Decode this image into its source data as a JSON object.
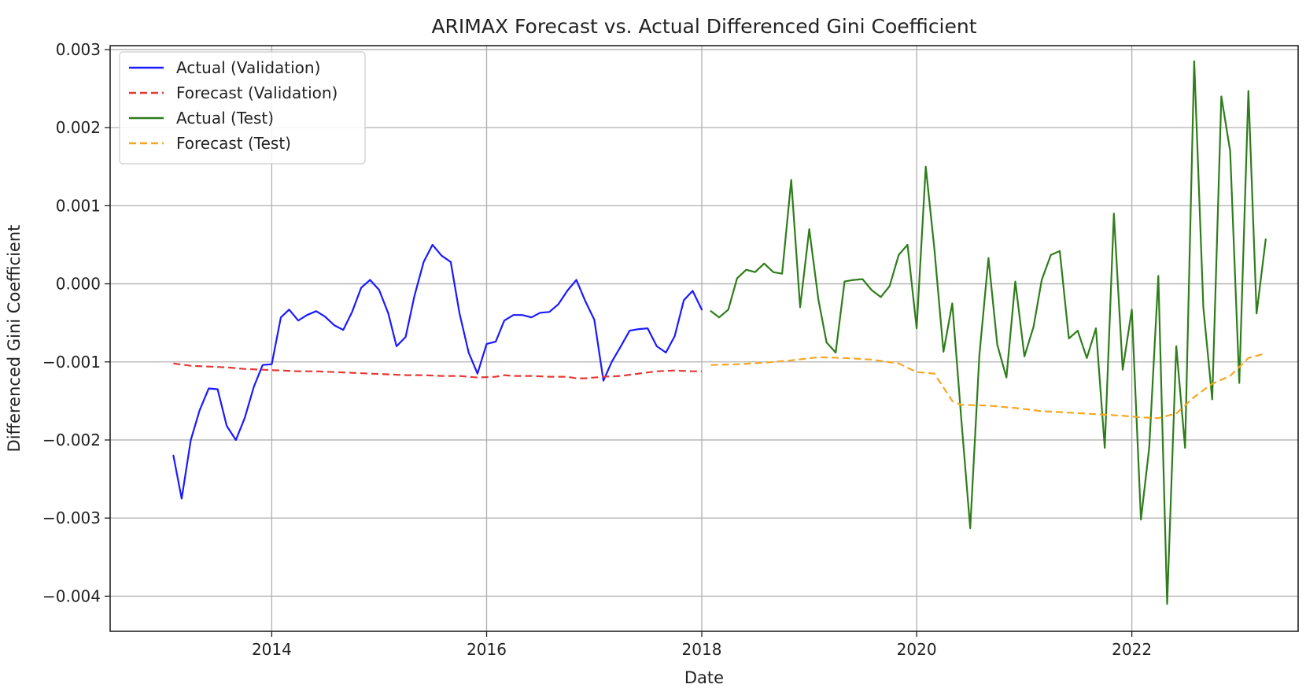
{
  "chart_data": {
    "type": "line",
    "title": "ARIMAX Forecast vs. Actual Differenced Gini Coefficient",
    "xlabel": "Date",
    "ylabel": "Differenced Gini Coefficient",
    "x_ticks": [
      {
        "date": "2014-01-01",
        "label": "2014"
      },
      {
        "date": "2016-01-01",
        "label": "2016"
      },
      {
        "date": "2018-01-01",
        "label": "2018"
      },
      {
        "date": "2020-01-01",
        "label": "2020"
      },
      {
        "date": "2022-01-01",
        "label": "2022"
      }
    ],
    "y_ticks": [
      {
        "value": 0.003,
        "label": "0.003"
      },
      {
        "value": 0.002,
        "label": "0.002"
      },
      {
        "value": 0.001,
        "label": "0.001"
      },
      {
        "value": 0.0,
        "label": "0.000"
      },
      {
        "value": -0.001,
        "label": "−0.001"
      },
      {
        "value": -0.002,
        "label": "−0.002"
      },
      {
        "value": -0.003,
        "label": "−0.003"
      },
      {
        "value": -0.004,
        "label": "−0.004"
      }
    ],
    "xlim": [
      "2012-07-01",
      "2023-07-20"
    ],
    "ylim": [
      -0.00445,
      0.00305
    ],
    "grid": true,
    "legend_position": "top-left",
    "series": [
      {
        "name": "Actual (Validation)",
        "color": "#1a1aff",
        "dashed": false,
        "x": [
          "2013-02-01",
          "2013-03-01",
          "2013-04-01",
          "2013-05-01",
          "2013-06-01",
          "2013-07-01",
          "2013-08-01",
          "2013-09-01",
          "2013-10-01",
          "2013-11-01",
          "2013-12-01",
          "2014-01-01",
          "2014-02-01",
          "2014-03-01",
          "2014-04-01",
          "2014-05-01",
          "2014-06-01",
          "2014-07-01",
          "2014-08-01",
          "2014-09-01",
          "2014-10-01",
          "2014-11-01",
          "2014-12-01",
          "2015-01-01",
          "2015-02-01",
          "2015-03-01",
          "2015-04-01",
          "2015-05-01",
          "2015-06-01",
          "2015-07-01",
          "2015-08-01",
          "2015-09-01",
          "2015-10-01",
          "2015-11-01",
          "2015-12-01",
          "2016-01-01",
          "2016-02-01",
          "2016-03-01",
          "2016-04-01",
          "2016-05-01",
          "2016-06-01",
          "2016-07-01",
          "2016-08-01",
          "2016-09-01",
          "2016-10-01",
          "2016-11-01",
          "2016-12-01",
          "2017-01-01",
          "2017-02-01",
          "2017-03-01",
          "2017-04-01",
          "2017-05-01",
          "2017-06-01",
          "2017-07-01",
          "2017-08-01",
          "2017-09-01",
          "2017-10-01",
          "2017-11-01",
          "2017-12-01",
          "2018-01-01"
        ],
        "values": [
          -0.0022,
          -0.00275,
          -0.002,
          -0.00162,
          -0.00134,
          -0.00135,
          -0.00182,
          -0.002,
          -0.00172,
          -0.00132,
          -0.00104,
          -0.00103,
          -0.00043,
          -0.00033,
          -0.00047,
          -0.0004,
          -0.00035,
          -0.00042,
          -0.00053,
          -0.00059,
          -0.00036,
          -5e-05,
          5e-05,
          -8e-05,
          -0.00038,
          -0.0008,
          -0.00068,
          -0.00015,
          0.00028,
          0.0005,
          0.00036,
          0.00028,
          -0.00038,
          -0.00088,
          -0.00115,
          -0.00077,
          -0.00074,
          -0.00047,
          -0.0004,
          -0.0004,
          -0.00043,
          -0.00037,
          -0.00036,
          -0.00026,
          -9e-05,
          5e-05,
          -0.00022,
          -0.00046,
          -0.00124,
          -0.001,
          -0.0008,
          -0.0006,
          -0.00058,
          -0.00057,
          -0.0008,
          -0.00088,
          -0.00067,
          -0.00021,
          -9e-05,
          -0.00033
        ]
      },
      {
        "name": "Forecast (Validation)",
        "color": "#e53935",
        "dashed": true,
        "x": [
          "2013-02-01",
          "2013-04-01",
          "2013-06-01",
          "2013-08-01",
          "2013-10-01",
          "2013-12-01",
          "2014-02-01",
          "2014-04-01",
          "2014-06-01",
          "2014-08-01",
          "2014-10-01",
          "2014-12-01",
          "2015-02-01",
          "2015-04-01",
          "2015-06-01",
          "2015-08-01",
          "2015-10-01",
          "2015-12-01",
          "2016-02-01",
          "2016-03-01",
          "2016-04-01",
          "2016-06-01",
          "2016-08-01",
          "2016-10-01",
          "2016-11-01",
          "2016-12-01",
          "2017-02-01",
          "2017-04-01",
          "2017-06-01",
          "2017-08-01",
          "2017-10-01",
          "2017-12-01",
          "2018-01-01"
        ],
        "values": [
          -0.00102,
          -0.00105,
          -0.00106,
          -0.00107,
          -0.00109,
          -0.0011,
          -0.00111,
          -0.00112,
          -0.00112,
          -0.00113,
          -0.00114,
          -0.00115,
          -0.00116,
          -0.00117,
          -0.00117,
          -0.00118,
          -0.00118,
          -0.0012,
          -0.00119,
          -0.00117,
          -0.00118,
          -0.00118,
          -0.00119,
          -0.00119,
          -0.00121,
          -0.00121,
          -0.00119,
          -0.00118,
          -0.00115,
          -0.00112,
          -0.00111,
          -0.00112,
          -0.00112
        ]
      },
      {
        "name": "Actual (Test)",
        "color": "#2e7d1a",
        "dashed": false,
        "x": [
          "2018-02-01",
          "2018-03-01",
          "2018-04-01",
          "2018-05-01",
          "2018-06-01",
          "2018-07-01",
          "2018-08-01",
          "2018-09-01",
          "2018-10-01",
          "2018-11-01",
          "2018-12-01",
          "2019-01-01",
          "2019-02-01",
          "2019-03-01",
          "2019-04-01",
          "2019-05-01",
          "2019-06-01",
          "2019-07-01",
          "2019-08-01",
          "2019-09-01",
          "2019-10-01",
          "2019-11-01",
          "2019-12-01",
          "2020-01-01",
          "2020-02-01",
          "2020-03-01",
          "2020-04-01",
          "2020-05-01",
          "2020-06-01",
          "2020-07-01",
          "2020-08-01",
          "2020-09-01",
          "2020-10-01",
          "2020-11-01",
          "2020-12-01",
          "2021-01-01",
          "2021-02-01",
          "2021-03-01",
          "2021-04-01",
          "2021-05-01",
          "2021-06-01",
          "2021-07-01",
          "2021-08-01",
          "2021-09-01",
          "2021-10-01",
          "2021-11-01",
          "2021-12-01",
          "2022-01-01",
          "2022-02-01",
          "2022-03-01",
          "2022-04-01",
          "2022-05-01",
          "2022-06-01",
          "2022-07-01",
          "2022-08-01",
          "2022-09-01",
          "2022-10-01",
          "2022-11-01",
          "2022-12-01",
          "2023-01-01",
          "2023-02-01",
          "2023-03-01",
          "2023-04-01"
        ],
        "values": [
          -0.00035,
          -0.00043,
          -0.00033,
          7e-05,
          0.00018,
          0.00015,
          0.00026,
          0.00015,
          0.00013,
          0.00133,
          -0.0003,
          0.0007,
          -0.0002,
          -0.00075,
          -0.00088,
          3e-05,
          5e-05,
          6e-05,
          -8e-05,
          -0.00017,
          -3e-05,
          0.00037,
          0.0005,
          -0.00057,
          0.0015,
          0.00045,
          -0.00087,
          -0.00025,
          -0.00175,
          -0.00313,
          -0.00092,
          0.00033,
          -0.00078,
          -0.0012,
          3e-05,
          -0.00093,
          -0.00055,
          5e-05,
          0.00037,
          0.00042,
          -0.0007,
          -0.0006,
          -0.00095,
          -0.00057,
          -0.0021,
          0.0009,
          -0.0011,
          -0.00033,
          -0.00302,
          -0.0021,
          0.0001,
          -0.0041,
          -0.0008,
          -0.0021,
          0.00285,
          -0.0003,
          -0.00148,
          0.0024,
          0.0017,
          -0.00127,
          0.00247,
          -0.00038,
          0.00057
        ]
      },
      {
        "name": "Forecast (Test)",
        "color": "#f5a623",
        "dashed": true,
        "x": [
          "2018-02-01",
          "2018-05-01",
          "2018-08-01",
          "2018-11-01",
          "2019-02-01",
          "2019-05-01",
          "2019-08-01",
          "2019-11-01",
          "2020-01-01",
          "2020-03-01",
          "2020-05-01",
          "2020-06-01",
          "2020-09-01",
          "2020-12-01",
          "2021-03-01",
          "2021-06-01",
          "2021-09-01",
          "2021-12-01",
          "2022-02-01",
          "2022-04-01",
          "2022-06-01",
          "2022-08-01",
          "2022-10-01",
          "2022-12-01",
          "2023-02-01",
          "2023-04-01"
        ],
        "values": [
          -0.00104,
          -0.00103,
          -0.00101,
          -0.00098,
          -0.00094,
          -0.00095,
          -0.00097,
          -0.00102,
          -0.00113,
          -0.00115,
          -0.0015,
          -0.00155,
          -0.00156,
          -0.00159,
          -0.00163,
          -0.00165,
          -0.00167,
          -0.00169,
          -0.00171,
          -0.00172,
          -0.00166,
          -0.00145,
          -0.00128,
          -0.00118,
          -0.00095,
          -0.00089
        ]
      }
    ]
  }
}
